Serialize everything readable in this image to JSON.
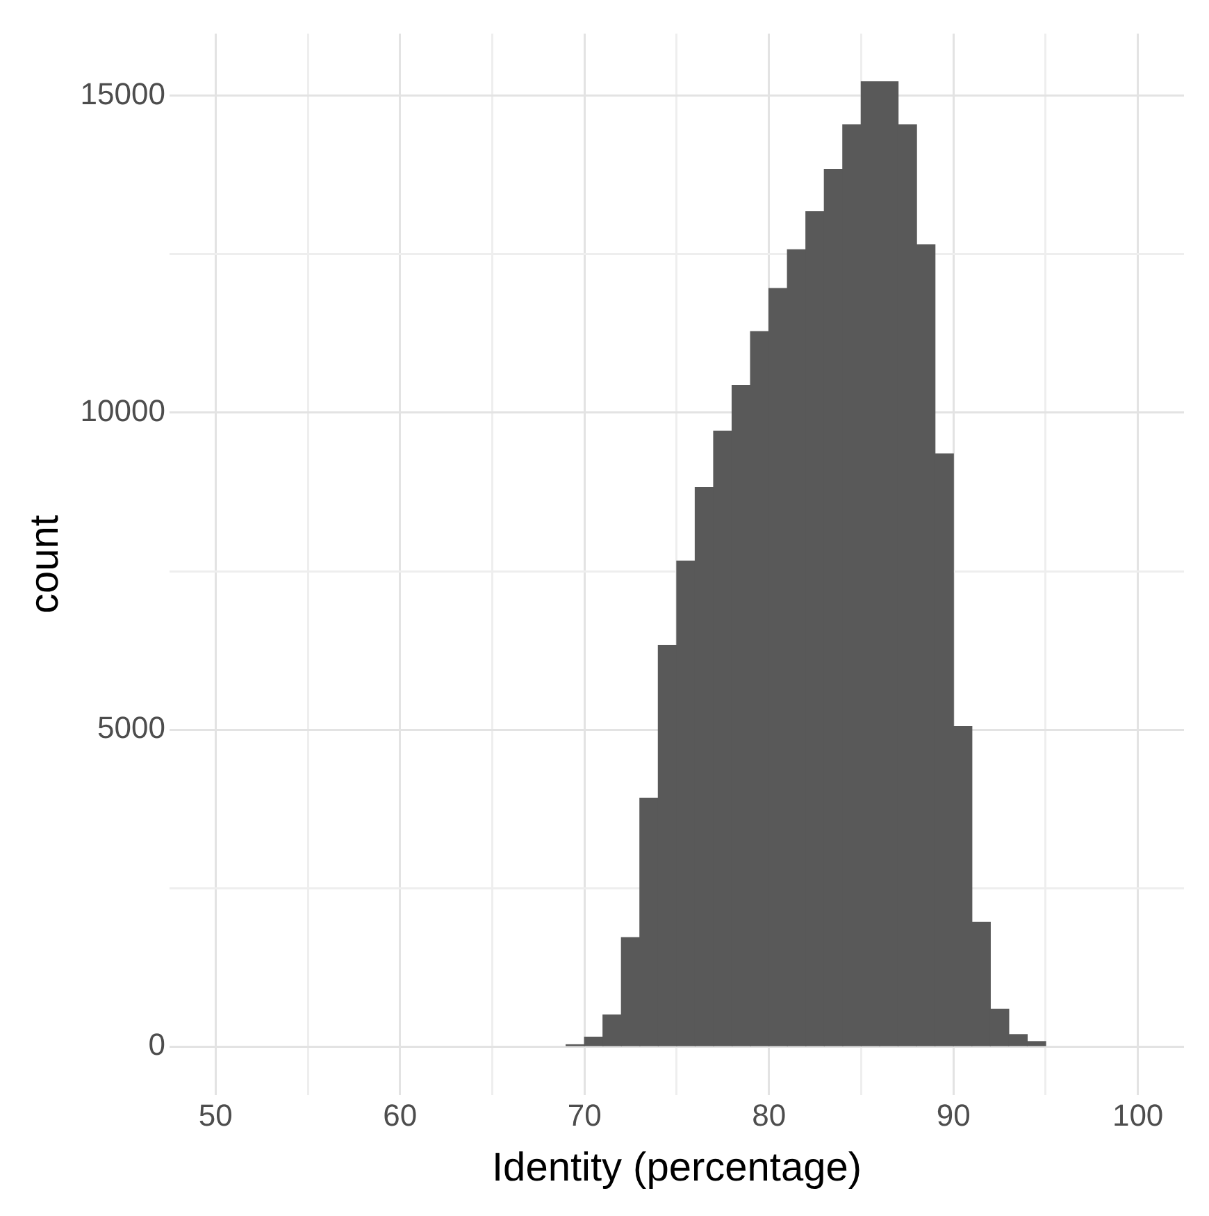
{
  "chart_data": {
    "type": "histogram",
    "xlabel": "Identity (percentage)",
    "ylabel": "count",
    "bins": [
      69,
      70,
      71,
      72,
      73,
      74,
      75,
      76,
      77,
      78,
      79,
      80,
      81,
      82,
      83,
      84,
      85,
      86,
      87,
      88,
      89,
      90,
      91,
      92,
      93,
      94,
      95
    ],
    "values": [
      30,
      150,
      500,
      1720,
      3920,
      6330,
      7660,
      8820,
      9710,
      10430,
      11280,
      11960,
      12570,
      13170,
      13840,
      14540,
      15220,
      15220,
      14540,
      12650,
      9350,
      5050,
      1960,
      590,
      190,
      80
    ],
    "color": "#595959",
    "xlim": [
      47.5,
      102.5
    ],
    "xticks": [
      50,
      {
        "value": 55,
        "label": null
      },
      60,
      {
        "value": 65,
        "label": null
      },
      70,
      {
        "value": 75,
        "label": null
      },
      80,
      {
        "value": 85,
        "label": null
      },
      90,
      {
        "value": 95,
        "label": null
      },
      100
    ],
    "ylim": [
      -760,
      15980
    ],
    "yticks": [
      0,
      {
        "value": 2500,
        "label": null
      },
      5000,
      {
        "value": 7500,
        "label": null
      },
      10000,
      {
        "value": 12500,
        "label": null
      },
      15000
    ],
    "grid": true
  }
}
